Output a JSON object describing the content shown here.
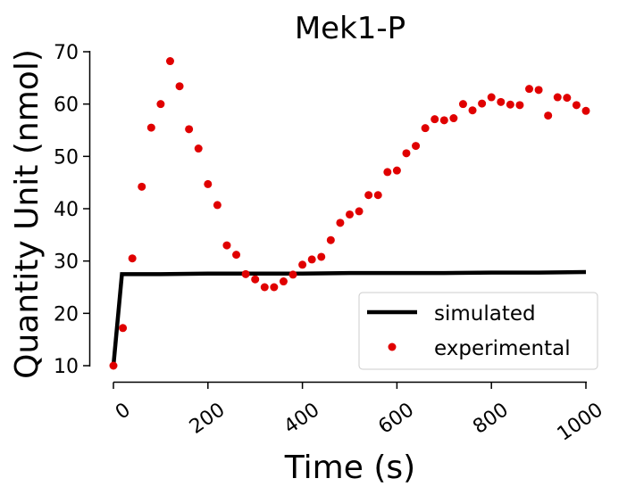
{
  "chart_data": {
    "type": "line",
    "title": "Mek1-P",
    "xlabel": "Time (s)",
    "ylabel": "Quantity Unit (nmol)",
    "xlim": [
      0,
      1000
    ],
    "ylim": [
      10,
      70
    ],
    "xticks": [
      "0",
      "200",
      "400",
      "600",
      "800",
      "1000"
    ],
    "yticks": [
      "10",
      "20",
      "30",
      "40",
      "50",
      "60",
      "70"
    ],
    "grid": false,
    "legend_position": "lower-right",
    "series": [
      {
        "name": "simulated",
        "style": "line",
        "color": "#000000",
        "x": [
          0,
          18,
          100,
          200,
          300,
          400,
          500,
          600,
          700,
          800,
          900,
          1000
        ],
        "y": [
          10,
          27.5,
          27.5,
          27.6,
          27.6,
          27.6,
          27.7,
          27.7,
          27.7,
          27.8,
          27.8,
          27.9
        ]
      },
      {
        "name": "experimental",
        "style": "scatter",
        "color": "#e00000",
        "x": [
          0,
          20,
          40,
          60,
          80,
          100,
          120,
          140,
          160,
          180,
          200,
          220,
          240,
          260,
          280,
          300,
          320,
          340,
          360,
          380,
          400,
          420,
          440,
          460,
          480,
          500,
          520,
          540,
          560,
          580,
          600,
          620,
          640,
          660,
          680,
          700,
          720,
          740,
          760,
          780,
          800,
          820,
          840,
          860,
          880,
          900,
          920,
          940,
          960,
          980,
          1000
        ],
        "y": [
          10,
          17.2,
          30.5,
          44.2,
          55.5,
          60,
          68.2,
          63.4,
          55.2,
          51.5,
          44.7,
          40.7,
          33,
          31.2,
          27.5,
          26.5,
          25,
          25,
          26.1,
          27.4,
          29.3,
          30.3,
          30.8,
          34,
          37.3,
          38.9,
          39.5,
          42.6,
          42.6,
          47,
          47.3,
          50.6,
          52,
          55.4,
          57.1,
          56.9,
          57.3,
          60,
          58.8,
          60.1,
          61.3,
          60.4,
          59.9,
          59.8,
          62.9,
          62.7,
          57.8,
          61.3,
          61.2,
          59.8,
          58.7
        ]
      }
    ]
  }
}
